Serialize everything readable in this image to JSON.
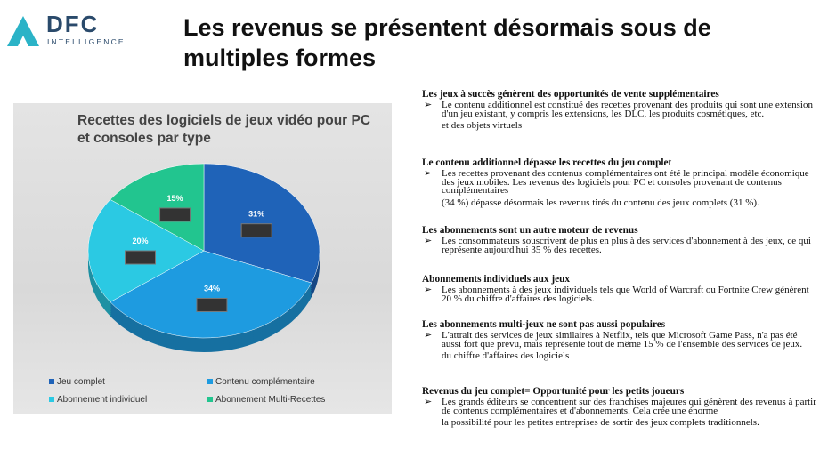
{
  "header": {
    "logo": "DFC",
    "logo_sub": "INTELLIGENCE",
    "title": "Les revenus se présentent désormais sous de multiples formes"
  },
  "chart_data": {
    "type": "pie",
    "title": "Recettes des logiciels de jeux vidéo pour PC et consoles par type",
    "categories": [
      "Jeu complet",
      "Contenu complémentaire",
      "Abonnement individuel",
      "Abonnement Multi-Recettes"
    ],
    "values": [
      31,
      34,
      20,
      15
    ],
    "value_labels": [
      "31%",
      "34%",
      "20%",
      "15%"
    ],
    "colors": [
      "#1f63b8",
      "#1e9be0",
      "#2bc9e3",
      "#22c58f"
    ]
  },
  "sections": [
    {
      "heading": "Les jeux à succès génèrent des opportunités de vente supplémentaires",
      "bullet": "Le contenu additionnel est constitué des recettes provenant des produits qui sont une extension d'un jeu existant, y compris les extensions, les DLC, les produits cosmétiques, etc.",
      "note": "et des objets virtuels"
    },
    {
      "heading": "Le contenu additionnel dépasse les recettes du jeu complet",
      "bullet": "Les recettes provenant des contenus complémentaires ont été le principal modèle économique des jeux mobiles. Les revenus des logiciels pour PC et consoles provenant de contenus complémentaires",
      "note": "(34 %) dépasse désormais les revenus tirés du contenu des jeux complets (31 %)."
    },
    {
      "heading": "Les abonnements sont un autre moteur de revenus",
      "bullet": "Les consommateurs souscrivent de plus en plus à des services d'abonnement à des jeux, ce qui représente aujourd'hui 35 % des recettes."
    },
    {
      "heading": "Abonnements individuels aux jeux",
      "bullet": "Les abonnements à des jeux individuels tels que World of Warcraft ou Fortnite Crew génèrent 20 % du chiffre d'affaires des logiciels."
    },
    {
      "heading": "Les abonnements multi-jeux ne sont pas aussi populaires",
      "bullet": "L'attrait des services de jeux similaires à Netflix, tels que Microsoft Game Pass, n'a pas été aussi fort que prévu, mais représente tout de même 15 % de l'ensemble des services de jeux.",
      "note": "du chiffre d'affaires des logiciels"
    },
    {
      "heading": "Revenus du jeu complet= Opportunité pour les petits joueurs",
      "bullet": "Les grands éditeurs se concentrent sur des franchises majeures qui génèrent des revenus à partir de contenus complémentaires et d'abonnements. Cela crée une énorme",
      "note": "la possibilité pour les petites entreprises de sortir des jeux complets traditionnels."
    }
  ]
}
